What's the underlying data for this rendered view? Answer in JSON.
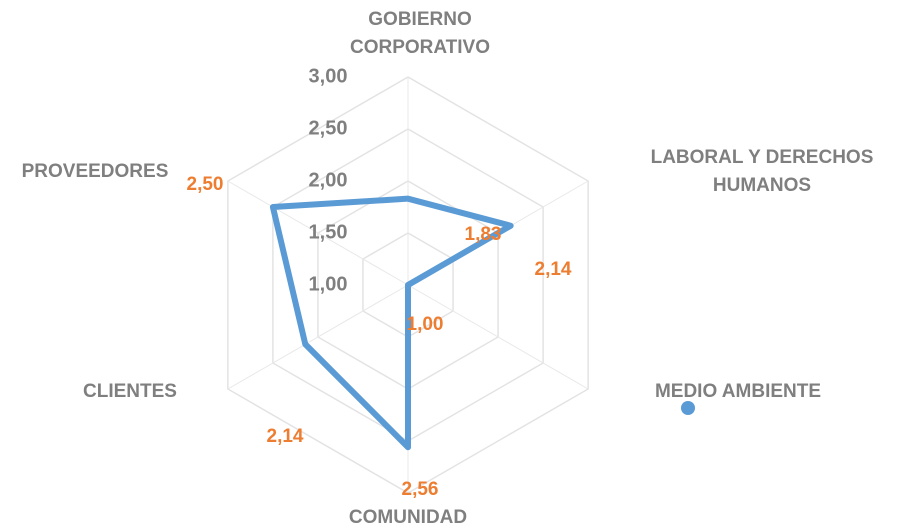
{
  "chart_data": {
    "type": "radar",
    "categories": [
      "GOBIERNO CORPORATIVO",
      "LABORAL Y DERECHOS HUMANOS",
      "MEDIO AMBIENTE",
      "COMUNIDAD",
      "CLIENTES",
      "PROVEEDORES"
    ],
    "series": [
      {
        "color": "#5b9bd5",
        "values": [
          1.83,
          2.14,
          1.0,
          2.56,
          2.14,
          2.5
        ],
        "value_labels": [
          "1,83",
          "2,14",
          "1,00",
          "2,56",
          "2,14",
          "2,50"
        ]
      }
    ],
    "rlim": [
      1,
      3
    ],
    "rticks": [
      {
        "value": 1,
        "label": "1,00"
      },
      {
        "value": 1.5,
        "label": "1,50"
      },
      {
        "value": 2,
        "label": "2,00"
      },
      {
        "value": 2.5,
        "label": "2,50"
      },
      {
        "value": 3,
        "label": "3,00"
      }
    ],
    "grid": true
  }
}
